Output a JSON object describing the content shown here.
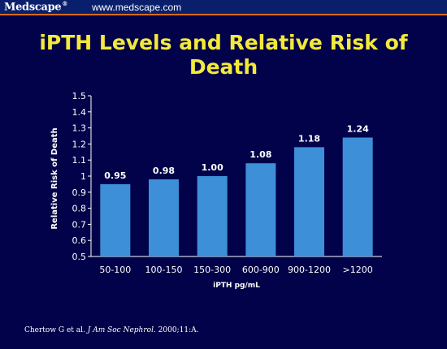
{
  "header": {
    "brand": "Medscape",
    "brand_mark": "®",
    "url": "www.medscape.com"
  },
  "colors": {
    "background": "#02024a",
    "bar": "#3d8fd8",
    "title": "#f3e93a",
    "header_line": "#d96a1a"
  },
  "chart_data": {
    "type": "bar",
    "title": "iPTH Levels and Relative Risk of Death",
    "title_lines": [
      "iPTH Levels and Relative Risk of",
      "Death"
    ],
    "categories": [
      "50-100",
      "100-150",
      "150-300",
      "600-900",
      "900-1200",
      ">1200"
    ],
    "values": [
      0.95,
      0.98,
      1.0,
      1.08,
      1.18,
      1.24
    ],
    "value_labels": [
      "0.95",
      "0.98",
      "1.00",
      "1.08",
      "1.18",
      "1.24"
    ],
    "xlabel": "iPTH pg/mL",
    "ylabel": "Relative Risk of Death",
    "ylim": [
      0.5,
      1.5
    ],
    "yticks": [
      "0.5",
      "0.6",
      "0.7",
      "0.8",
      "0.9",
      "1",
      "1.1",
      "1.2",
      "1.3",
      "1.4",
      "1.5"
    ],
    "grid": false,
    "legend": "none"
  },
  "footnote": {
    "authors": "Chertow G et al. ",
    "journal": "J Am Soc Nephrol",
    "rest": ". 2000;11:A."
  }
}
